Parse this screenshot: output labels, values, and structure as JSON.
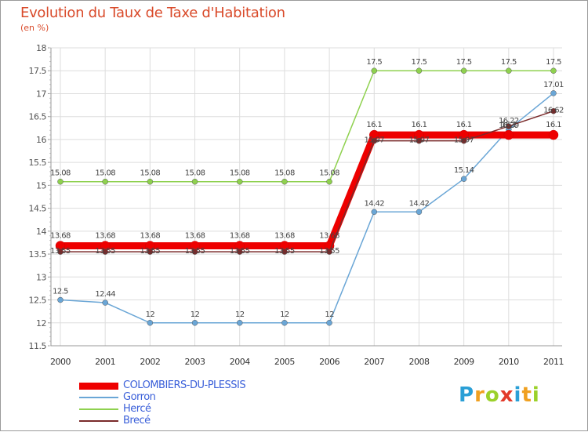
{
  "header": {
    "title": "Evolution du Taux de Taxe d'Habitation",
    "unit": "(en %)"
  },
  "logo": {
    "letters": [
      "P",
      "r",
      "o",
      "x",
      "i",
      "t",
      "i"
    ],
    "colors": [
      "#2a9fd6",
      "#f0a020",
      "#9bd12a",
      "#e23a2a",
      "#2a9fd6",
      "#f0a020",
      "#9bd12a"
    ]
  },
  "chart_data": {
    "type": "line",
    "categories": [
      "2000",
      "2001",
      "2002",
      "2003",
      "2004",
      "2005",
      "2006",
      "2007",
      "2008",
      "2009",
      "2010",
      "2011"
    ],
    "ylim": [
      11.5,
      18
    ],
    "yticks": [
      "11.5",
      "12",
      "12.5",
      "13",
      "13.5",
      "14",
      "14.5",
      "15",
      "15.5",
      "16",
      "16.5",
      "17",
      "17.5",
      "18"
    ],
    "grid": true,
    "legend_position": "bottom-left",
    "series": [
      {
        "name": "COLOMBIERS-DU-PLESSIS",
        "color": "#ee0000",
        "values": [
          13.68,
          13.68,
          13.68,
          13.68,
          13.68,
          13.68,
          13.68,
          16.1,
          16.1,
          16.1,
          16.1,
          16.1
        ],
        "labels": [
          "13.68",
          "13.68",
          "13.68",
          "13.68",
          "13.68",
          "13.68",
          "13.68",
          "16.1",
          "16.1",
          "16.1",
          "16.1",
          "16.1"
        ]
      },
      {
        "name": "Gorron",
        "color": "#6aa6d6",
        "values": [
          12.5,
          12.44,
          12,
          12,
          12,
          12,
          12,
          14.42,
          14.42,
          15.14,
          16.22,
          17.01
        ],
        "labels": [
          "12.5",
          "12.44",
          "12",
          "12",
          "12",
          "12",
          "12",
          "14.42",
          "14.42",
          "15.14",
          "16.22",
          "17.01"
        ]
      },
      {
        "name": "Hercé",
        "color": "#8fd14f",
        "values": [
          15.08,
          15.08,
          15.08,
          15.08,
          15.08,
          15.08,
          15.08,
          17.5,
          17.5,
          17.5,
          17.5,
          17.5
        ],
        "labels": [
          "15.08",
          "15.08",
          "15.08",
          "15.08",
          "15.08",
          "15.08",
          "15.08",
          "17.5",
          "17.5",
          "17.5",
          "17.5",
          "17.5"
        ]
      },
      {
        "name": "Brecé",
        "color": "#7a2a2a",
        "values": [
          13.55,
          13.55,
          13.55,
          13.55,
          13.55,
          13.55,
          13.55,
          15.97,
          15.97,
          15.97,
          16.29,
          16.62
        ],
        "labels": [
          "13.55",
          "13.55",
          "13.55",
          "13.55",
          "13.55",
          "13.55",
          "13.55",
          "15.97",
          "15.97",
          "15.97",
          "16.29",
          "16.62"
        ]
      }
    ]
  }
}
